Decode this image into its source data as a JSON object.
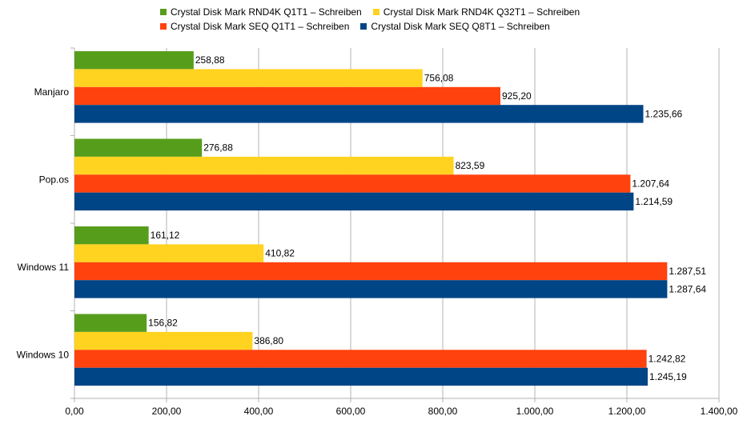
{
  "chart_data": {
    "type": "bar",
    "orientation": "horizontal",
    "categories": [
      "Manjaro",
      "Pop.os",
      "Windows 11",
      "Windows 10"
    ],
    "series": [
      {
        "name": "Crystal Disk Mark RND4K Q1T1 – Schreiben",
        "color": "#579d1c",
        "values": [
          258.88,
          276.88,
          161.12,
          156.82
        ],
        "labels": [
          "258,88",
          "276,88",
          "161,12",
          "156,82"
        ]
      },
      {
        "name": "Crystal Disk Mark RND4K Q32T1 – Schreiben",
        "color": "#ffd320",
        "values": [
          756.08,
          823.59,
          410.82,
          386.8
        ],
        "labels": [
          "756,08",
          "823,59",
          "410,82",
          "386,80"
        ]
      },
      {
        "name": "Crystal Disk Mark SEQ Q1T1 – Schreiben",
        "color": "#ff420e",
        "values": [
          925.2,
          1207.64,
          1287.51,
          1242.82
        ],
        "labels": [
          "925,20",
          "1.207,64",
          "1.287,51",
          "1.242,82"
        ]
      },
      {
        "name": "Crystal Disk Mark SEQ Q8T1 – Schreiben",
        "color": "#004586",
        "values": [
          1235.66,
          1214.59,
          1287.64,
          1245.19
        ],
        "labels": [
          "1.235,66",
          "1.214,59",
          "1.287,64",
          "1.245,19"
        ]
      }
    ],
    "xlim": [
      0,
      1400
    ],
    "ticks": [
      0,
      200,
      400,
      600,
      800,
      1000,
      1200,
      1400
    ],
    "tick_labels": [
      "0,00",
      "200,00",
      "400,00",
      "600,00",
      "800,00",
      "1.000,00",
      "1.200,00",
      "1.400,00"
    ],
    "grid": true,
    "legend": "top"
  }
}
